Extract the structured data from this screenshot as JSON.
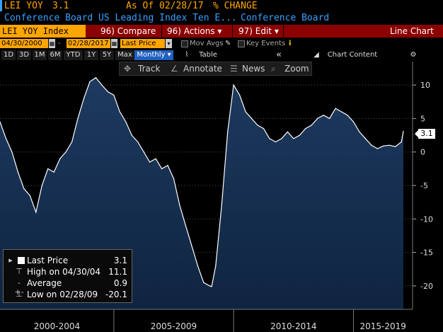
{
  "header": {
    "ticker": "LEI YOY",
    "last_value": "3.1",
    "as_of_label": "As Of",
    "as_of_date": "02/28/17",
    "unit": "% CHANGE",
    "description": "Conference Board US Leading Index Ten E...",
    "source": "Conference Board"
  },
  "menu": {
    "security": "LEI YOY Index",
    "compare": "96) Compare",
    "actions": "96) Actions ▾",
    "edit": "97) Edit ▾",
    "chart_type": "Line Chart"
  },
  "controls": {
    "start_date": "04/30/2000",
    "end_date": "02/28/2017",
    "price_field": "Last Price",
    "mov_avgs": "Mov Avgs",
    "key_events": "Key Events",
    "periods": [
      "1D",
      "3D",
      "1M",
      "6M",
      "YTD",
      "1Y",
      "5Y",
      "Max"
    ],
    "frequency": "Monthly ▾",
    "table": "Table",
    "chart_content": "Chart Content",
    "collapse": "«"
  },
  "toolbar": {
    "track": "Track",
    "annotate": "Annotate",
    "news": "News",
    "zoom": "Zoom"
  },
  "legend": {
    "last_price_label": "Last Price",
    "last_price_value": "3.1",
    "high_label": "High on 04/30/04",
    "high_value": "11.1",
    "average_label": "Average",
    "average_value": "0.9",
    "low_label": "Low on 02/28/09",
    "low_value": "-20.1"
  },
  "price_tag": "3.1",
  "colors": {
    "accent": "#ffa500",
    "menu_bar": "#8b0000",
    "line": "#ffffff",
    "fill_top": "#1d3a60",
    "fill_bottom": "#0f2440",
    "description_text": "#38a0ff"
  },
  "chart_data": {
    "type": "area",
    "title": "",
    "xlabel": "",
    "ylabel": "",
    "ylim": [
      -23.5,
      13.5
    ],
    "yticks": [
      10,
      5,
      0,
      -5,
      -10,
      -15,
      -20
    ],
    "x_labels": [
      "2000-2004",
      "2005-2009",
      "2010-2014",
      "2015-2019"
    ],
    "x": [
      "2000-04",
      "2000-07",
      "2000-10",
      "2001-01",
      "2001-04",
      "2001-07",
      "2001-10",
      "2002-01",
      "2002-04",
      "2002-07",
      "2002-10",
      "2003-01",
      "2003-04",
      "2003-07",
      "2003-10",
      "2004-01",
      "2004-04",
      "2004-07",
      "2004-10",
      "2005-01",
      "2005-04",
      "2005-07",
      "2005-10",
      "2006-01",
      "2006-04",
      "2006-07",
      "2006-10",
      "2007-01",
      "2007-04",
      "2007-07",
      "2007-10",
      "2008-01",
      "2008-04",
      "2008-07",
      "2008-10",
      "2009-01",
      "2009-02",
      "2009-04",
      "2009-07",
      "2009-10",
      "2010-01",
      "2010-04",
      "2010-07",
      "2010-10",
      "2011-01",
      "2011-04",
      "2011-07",
      "2011-10",
      "2012-01",
      "2012-04",
      "2012-07",
      "2012-10",
      "2013-01",
      "2013-04",
      "2013-07",
      "2013-10",
      "2014-01",
      "2014-04",
      "2014-07",
      "2014-10",
      "2015-01",
      "2015-04",
      "2015-07",
      "2015-10",
      "2016-01",
      "2016-04",
      "2016-07",
      "2016-10",
      "2017-01",
      "2017-02"
    ],
    "values": [
      4.5,
      2.0,
      0.0,
      -3.0,
      -5.5,
      -6.5,
      -9.0,
      -5.0,
      -2.5,
      -3.0,
      -1.0,
      0.0,
      1.5,
      5.0,
      8.0,
      10.5,
      11.1,
      10.0,
      9.0,
      8.5,
      6.0,
      4.5,
      2.5,
      1.5,
      0.0,
      -1.5,
      -1.0,
      -2.5,
      -2.0,
      -4.0,
      -8.0,
      -11.0,
      -14.0,
      -17.0,
      -19.5,
      -20.0,
      -20.1,
      -17.0,
      -8.0,
      3.0,
      10.0,
      8.5,
      6.0,
      5.0,
      4.0,
      3.5,
      2.0,
      1.5,
      2.0,
      3.0,
      2.0,
      2.5,
      3.5,
      4.0,
      5.0,
      5.5,
      5.0,
      6.5,
      6.0,
      5.5,
      4.5,
      3.0,
      2.0,
      1.0,
      0.5,
      0.9,
      1.0,
      0.8,
      1.5,
      3.1
    ]
  }
}
